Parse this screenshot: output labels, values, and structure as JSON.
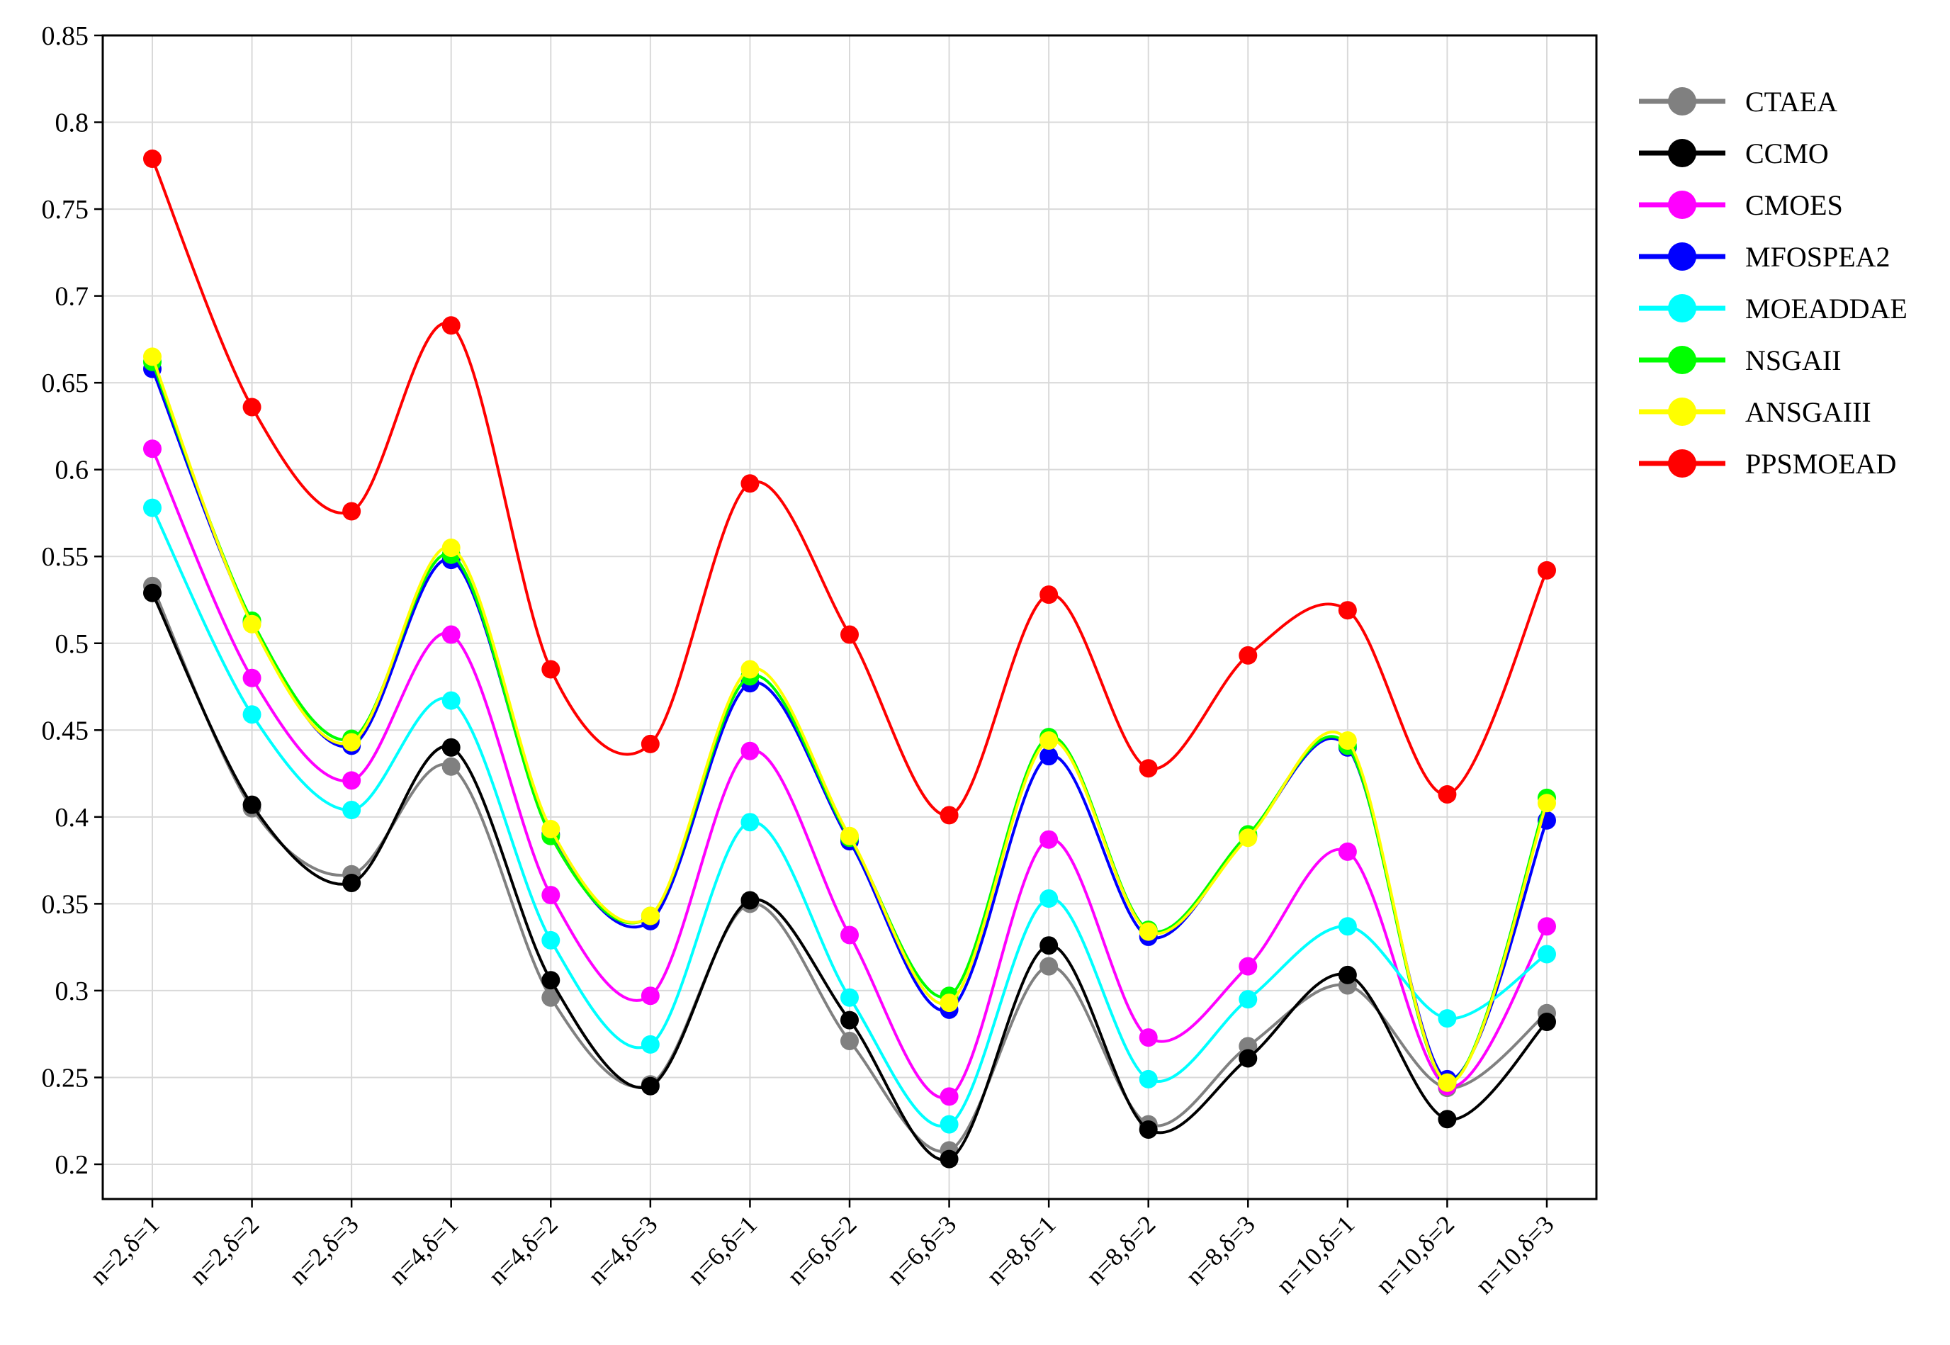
{
  "chart_data": {
    "type": "line",
    "title": "",
    "xlabel": "",
    "ylabel": "",
    "categories": [
      "n=2,δ=1",
      "n=2,δ=2",
      "n=2,δ=3",
      "n=4,δ=1",
      "n=4,δ=2",
      "n=4,δ=3",
      "n=6,δ=1",
      "n=6,δ=2",
      "n=6,δ=3",
      "n=8,δ=1",
      "n=8,δ=2",
      "n=8,δ=3",
      "n=10,δ=1",
      "n=10,δ=2",
      "n=10,δ=3"
    ],
    "ylim": [
      0.18,
      0.85
    ],
    "yticks": [
      "0.2",
      "0.25",
      "0.3",
      "0.35",
      "0.4",
      "0.45",
      "0.5",
      "0.55",
      "0.6",
      "0.65",
      "0.7",
      "0.75",
      "0.8",
      "0.85"
    ],
    "grid": true,
    "legend_position": "right",
    "series": [
      {
        "name": "CTAEA",
        "color": "#808080",
        "values": [
          0.533,
          0.405,
          0.367,
          0.429,
          0.296,
          0.246,
          0.35,
          0.271,
          0.208,
          0.314,
          0.223,
          0.268,
          0.303,
          0.244,
          0.287
        ]
      },
      {
        "name": "CCMO",
        "color": "#000000",
        "values": [
          0.529,
          0.407,
          0.362,
          0.44,
          0.306,
          0.245,
          0.352,
          0.283,
          0.203,
          0.326,
          0.22,
          0.261,
          0.309,
          0.226,
          0.282
        ]
      },
      {
        "name": "CMOES",
        "color": "#ff00ff",
        "values": [
          0.612,
          0.48,
          0.421,
          0.505,
          0.355,
          0.297,
          0.438,
          0.332,
          0.239,
          0.387,
          0.273,
          0.314,
          0.38,
          0.245,
          0.337
        ]
      },
      {
        "name": "MFOSPEA2",
        "color": "#0000ff",
        "values": [
          0.658,
          0.512,
          0.441,
          0.548,
          0.39,
          0.34,
          0.477,
          0.386,
          0.289,
          0.435,
          0.331,
          0.389,
          0.44,
          0.249,
          0.398
        ]
      },
      {
        "name": "MOEADDAE",
        "color": "#00ffff",
        "values": [
          0.578,
          0.459,
          0.404,
          0.467,
          0.329,
          0.269,
          0.397,
          0.296,
          0.223,
          0.353,
          0.249,
          0.295,
          0.337,
          0.284,
          0.321
        ]
      },
      {
        "name": "NSGAII",
        "color": "#00ff00",
        "values": [
          0.662,
          0.513,
          0.445,
          0.551,
          0.389,
          0.343,
          0.481,
          0.388,
          0.297,
          0.446,
          0.335,
          0.39,
          0.441,
          0.247,
          0.411
        ]
      },
      {
        "name": "ANSGAIII",
        "color": "#ffff00",
        "values": [
          0.665,
          0.511,
          0.443,
          0.555,
          0.393,
          0.343,
          0.485,
          0.389,
          0.293,
          0.444,
          0.334,
          0.388,
          0.444,
          0.247,
          0.408
        ]
      },
      {
        "name": "PPSMOEAD",
        "color": "#ff0000",
        "values": [
          0.779,
          0.636,
          0.576,
          0.683,
          0.485,
          0.442,
          0.592,
          0.505,
          0.401,
          0.528,
          0.428,
          0.493,
          0.519,
          0.413,
          0.542
        ]
      }
    ]
  }
}
